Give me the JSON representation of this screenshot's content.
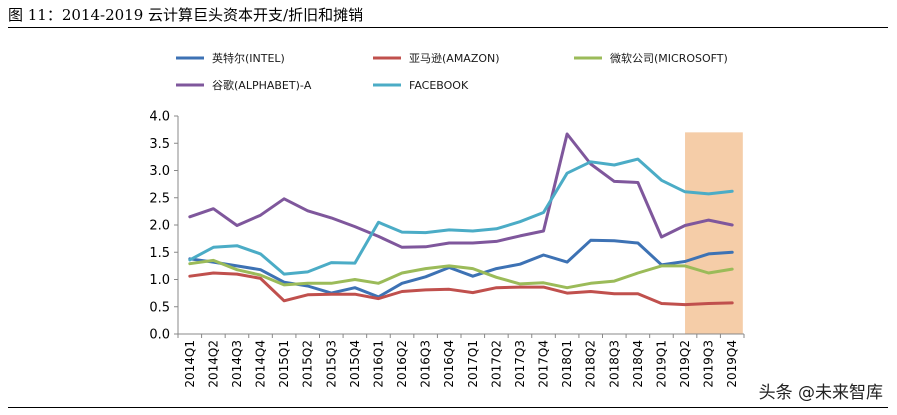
{
  "figure": {
    "title": "图 11：2014-2019 云计算巨头资本开支/折旧和摊销",
    "watermark": "头条 @未来智库"
  },
  "chart_data": {
    "type": "line",
    "title": "",
    "xlabel": "",
    "ylabel": "",
    "ylim": [
      0,
      4.0
    ],
    "yticks": [
      "0.0",
      "0.5",
      "1.0",
      "1.5",
      "2.0",
      "2.5",
      "3.0",
      "3.5",
      "4.0"
    ],
    "grid": false,
    "legend_position": "top",
    "categories": [
      "2014Q1",
      "2014Q2",
      "2014Q3",
      "2014Q4",
      "2015Q1",
      "2015Q2",
      "2015Q3",
      "2015Q4",
      "2016Q1",
      "2016Q2",
      "2016Q3",
      "2016Q4",
      "2017Q1",
      "2017Q2",
      "2017Q3",
      "2017Q4",
      "2018Q1",
      "2018Q2",
      "2018Q3",
      "2018Q4",
      "2019Q1",
      "2019Q2",
      "2019Q3",
      "2019Q4"
    ],
    "highlight_categories": [
      "2019Q3",
      "2019Q4"
    ],
    "highlight_color": "#f5cda8",
    "series": [
      {
        "name": "英特尔(INTEL)",
        "color": "#3d72b4",
        "values": [
          1.38,
          1.32,
          1.25,
          1.18,
          0.95,
          0.88,
          0.75,
          0.85,
          0.68,
          0.93,
          1.05,
          1.22,
          1.06,
          1.2,
          1.28,
          1.45,
          1.32,
          1.72,
          1.71,
          1.67,
          1.27,
          1.33,
          1.47,
          1.5
        ]
      },
      {
        "name": "亚马逊(AMAZON)",
        "color": "#c0504d",
        "values": [
          1.06,
          1.12,
          1.1,
          1.02,
          0.61,
          0.72,
          0.73,
          0.73,
          0.65,
          0.78,
          0.81,
          0.82,
          0.76,
          0.85,
          0.86,
          0.86,
          0.75,
          0.78,
          0.74,
          0.74,
          0.56,
          0.54,
          0.56,
          0.57
        ]
      },
      {
        "name": "微软公司(MICROSOFT)",
        "color": "#9bbb59",
        "values": [
          1.29,
          1.35,
          1.18,
          1.08,
          0.9,
          0.93,
          0.93,
          1.0,
          0.93,
          1.12,
          1.2,
          1.25,
          1.2,
          1.04,
          0.92,
          0.94,
          0.85,
          0.93,
          0.97,
          1.12,
          1.25,
          1.25,
          1.12,
          1.19
        ]
      },
      {
        "name": "谷歌(ALPHABET)-A",
        "color": "#7f579c",
        "values": [
          2.15,
          2.3,
          1.99,
          2.18,
          2.48,
          2.26,
          2.13,
          1.97,
          1.79,
          1.59,
          1.6,
          1.67,
          1.67,
          1.7,
          1.8,
          1.89,
          3.67,
          3.12,
          2.8,
          2.78,
          1.78,
          1.99,
          2.09,
          2.0
        ]
      },
      {
        "name": "FACEBOOK",
        "color": "#4bacc6",
        "values": [
          1.36,
          1.59,
          1.62,
          1.47,
          1.1,
          1.14,
          1.31,
          1.3,
          2.05,
          1.87,
          1.86,
          1.91,
          1.89,
          1.93,
          2.06,
          2.23,
          2.95,
          3.16,
          3.1,
          3.21,
          2.82,
          2.61,
          2.57,
          2.62
        ]
      }
    ]
  }
}
